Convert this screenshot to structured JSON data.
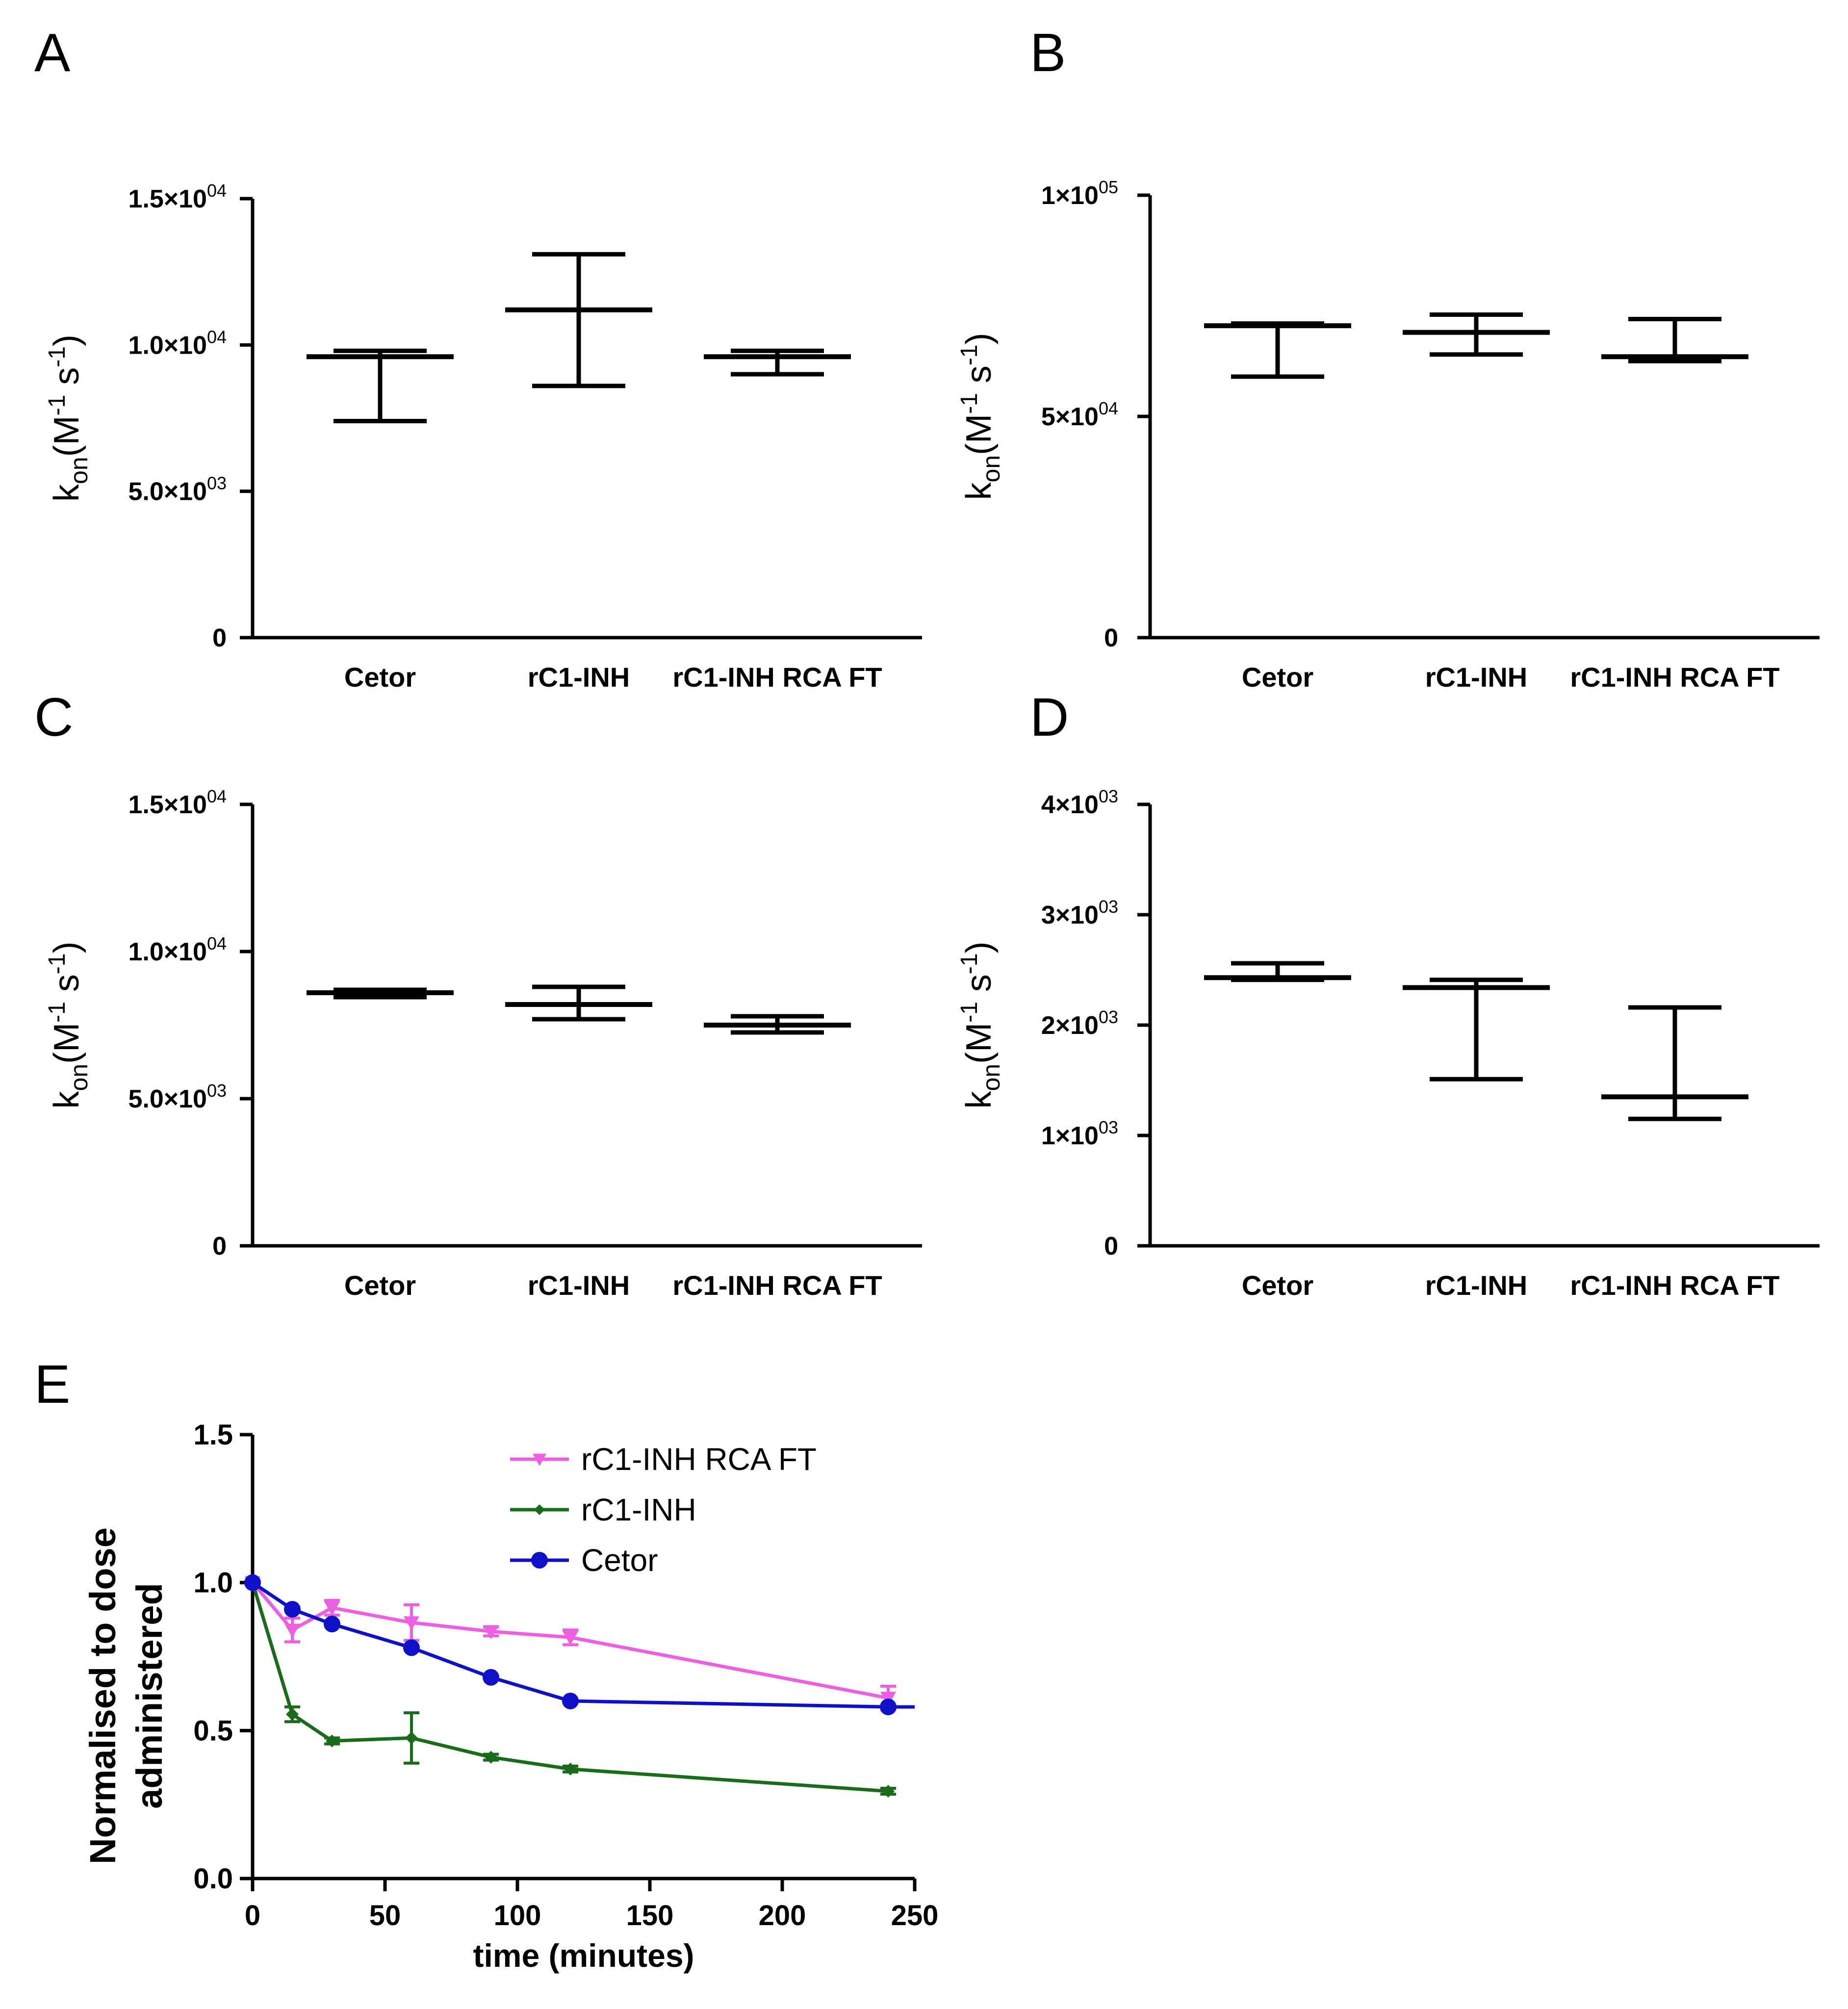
{
  "chart_data": [
    {
      "panel": "A",
      "type": "range",
      "ylabel": {
        "base": "k",
        "sub": "on",
        "mid": "(M",
        "sup1": "-1",
        "s": " s",
        "sup2": "-1",
        "close": ")"
      },
      "ylim": [
        0,
        15000
      ],
      "yticks": [
        {
          "value": 0,
          "mant": "0",
          "exp": ""
        },
        {
          "value": 5000,
          "mant": "5.0×10",
          "exp": "03"
        },
        {
          "value": 10000,
          "mant": "1.0×10",
          "exp": "04"
        },
        {
          "value": 15000,
          "mant": "1.5×10",
          "exp": "04"
        }
      ],
      "categories": [
        "Cetor",
        "rC1-INH",
        "rC1-INH RCA FT"
      ],
      "series": [
        {
          "name": "Cetor",
          "mean": 9600,
          "max": 9800,
          "min": 7400
        },
        {
          "name": "rC1-INH",
          "mean": 11200,
          "max": 13100,
          "min": 8600
        },
        {
          "name": "rC1-INH RCA FT",
          "mean": 9600,
          "max": 9800,
          "min": 9000
        }
      ]
    },
    {
      "panel": "B",
      "type": "range",
      "ylabel": {
        "base": "k",
        "sub": "on",
        "mid": "(M",
        "sup1": "-1",
        "s": " s",
        "sup2": "-1",
        "close": ")"
      },
      "ylim": [
        0,
        100000
      ],
      "yticks": [
        {
          "value": 0,
          "mant": "0",
          "exp": ""
        },
        {
          "value": 50000,
          "mant": "5×10",
          "exp": "04"
        },
        {
          "value": 100000,
          "mant": "1×10",
          "exp": "05"
        }
      ],
      "categories": [
        "Cetor",
        "rC1-INH",
        "rC1-INH RCA FT"
      ],
      "series": [
        {
          "name": "Cetor",
          "mean": 70500,
          "max": 71000,
          "min": 59000
        },
        {
          "name": "rC1-INH",
          "mean": 69000,
          "max": 73000,
          "min": 64000
        },
        {
          "name": "rC1-INH RCA FT",
          "mean": 63500,
          "max": 72000,
          "min": 62500
        }
      ]
    },
    {
      "panel": "C",
      "type": "range",
      "ylabel": {
        "base": "k",
        "sub": "on",
        "mid": "(M",
        "sup1": "-1",
        "s": " s",
        "sup2": "-1",
        "close": ")"
      },
      "ylim": [
        0,
        15000
      ],
      "yticks": [
        {
          "value": 0,
          "mant": "0",
          "exp": ""
        },
        {
          "value": 5000,
          "mant": "5.0×10",
          "exp": "03"
        },
        {
          "value": 10000,
          "mant": "1.0×10",
          "exp": "04"
        },
        {
          "value": 15000,
          "mant": "1.5×10",
          "exp": "04"
        }
      ],
      "categories": [
        "Cetor",
        "rC1-INH",
        "rC1-INH RCA FT"
      ],
      "series": [
        {
          "name": "Cetor",
          "mean": 8600,
          "max": 8700,
          "min": 8450
        },
        {
          "name": "rC1-INH",
          "mean": 8200,
          "max": 8800,
          "min": 7700
        },
        {
          "name": "rC1-INH RCA FT",
          "mean": 7500,
          "max": 7800,
          "min": 7250
        }
      ]
    },
    {
      "panel": "D",
      "type": "range",
      "ylabel": {
        "base": "k",
        "sub": "on",
        "mid": "(M",
        "sup1": "-1",
        "s": " s",
        "sup2": "-1",
        "close": ")"
      },
      "ylim": [
        0,
        4000
      ],
      "yticks": [
        {
          "value": 0,
          "mant": "0",
          "exp": ""
        },
        {
          "value": 1000,
          "mant": "1×10",
          "exp": "03"
        },
        {
          "value": 2000,
          "mant": "2×10",
          "exp": "03"
        },
        {
          "value": 3000,
          "mant": "3×10",
          "exp": "03"
        },
        {
          "value": 4000,
          "mant": "4×10",
          "exp": "03"
        }
      ],
      "categories": [
        "Cetor",
        "rC1-INH",
        "rC1-INH RCA FT"
      ],
      "series": [
        {
          "name": "Cetor",
          "mean": 2430,
          "max": 2560,
          "min": 2410
        },
        {
          "name": "rC1-INH",
          "mean": 2340,
          "max": 2410,
          "min": 1510
        },
        {
          "name": "rC1-INH RCA FT",
          "mean": 1350,
          "max": 2160,
          "min": 1150
        }
      ]
    },
    {
      "panel": "E",
      "type": "line",
      "xlabel": "time (minutes)",
      "ylabel_lines": [
        "Normalised to dose",
        "administered"
      ],
      "xlim": [
        0,
        250
      ],
      "ylim": [
        0,
        1.5
      ],
      "xticks": [
        0,
        50,
        100,
        150,
        200,
        250
      ],
      "yticks": [
        "0.0",
        "0.5",
        "1.0",
        "1.5"
      ],
      "legend_position": "top-center",
      "series": [
        {
          "name": "rC1-INH RCA FT",
          "color": "#ee5ee0",
          "marker": "triangle-down",
          "x": [
            0,
            15,
            30,
            60,
            90,
            120,
            240
          ],
          "y": [
            1.0,
            0.84,
            0.915,
            0.865,
            0.835,
            0.815,
            0.61
          ],
          "err": [
            0,
            0.04,
            0.025,
            0.06,
            0.015,
            0.025,
            0.04
          ]
        },
        {
          "name": "rC1-INH",
          "color": "#1a6b1a",
          "marker": "diamond",
          "x": [
            0,
            15,
            30,
            60,
            90,
            120,
            240
          ],
          "y": [
            1.0,
            0.555,
            0.465,
            0.475,
            0.41,
            0.37,
            0.295
          ],
          "err": [
            0,
            0.025,
            0.01,
            0.085,
            0.01,
            0.01,
            0.01
          ]
        },
        {
          "name": "Cetor",
          "color": "#1010c8",
          "marker": "circle",
          "x": [
            0,
            15,
            30,
            60,
            90,
            120,
            240,
            250
          ],
          "y": [
            1.0,
            0.91,
            0.86,
            0.78,
            0.68,
            0.6,
            0.58,
            0.58
          ],
          "err": [
            0,
            0,
            0,
            0,
            0,
            0,
            0,
            0
          ]
        }
      ]
    }
  ]
}
